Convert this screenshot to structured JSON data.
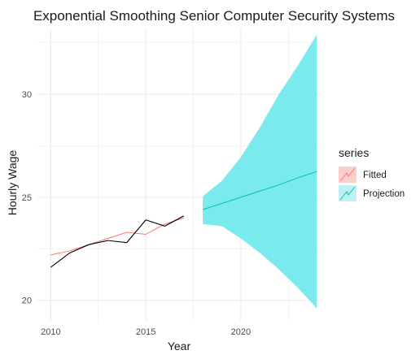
{
  "chart_data": {
    "type": "line",
    "title": "Exponential Smoothing Senior Computer Security Systems",
    "xlabel": "Year",
    "ylabel": "Hourly Wage",
    "xlim": [
      2009.3,
      2024.2
    ],
    "ylim": [
      19.0,
      33.2
    ],
    "x_ticks": [
      2010,
      2015,
      2020
    ],
    "y_ticks": [
      20,
      25,
      30
    ],
    "grid": true,
    "legend": {
      "title": "series",
      "placement": "right",
      "entries": [
        "Fitted",
        "Projection"
      ]
    },
    "colors": {
      "fitted": "#f8766d",
      "projection": "#00bfc4",
      "band": "#7aeaee",
      "band_legend": "#bff0f2",
      "fitted_legend_fill": "#f9cfcc",
      "actual": "#000000",
      "grid": "#ebebeb"
    },
    "series": [
      {
        "name": "Fitted",
        "x": [
          2010,
          2011,
          2012,
          2013,
          2014,
          2015,
          2016,
          2017
        ],
        "values": [
          22.2,
          22.4,
          22.7,
          23.0,
          23.3,
          23.2,
          23.7,
          24.0
        ]
      },
      {
        "x": [
          2010,
          2011,
          2012,
          2013,
          2014,
          2015,
          2016,
          2017
        ],
        "values": [
          21.6,
          22.3,
          22.7,
          22.9,
          22.8,
          23.9,
          23.6,
          24.1
        ]
      },
      {
        "name": "Projection",
        "x": [
          2018,
          2019,
          2020,
          2021,
          2022,
          2023,
          2024
        ],
        "values": [
          24.4,
          24.7,
          25.0,
          25.3,
          25.6,
          25.95,
          26.25
        ],
        "lower": [
          23.7,
          23.6,
          23.0,
          22.3,
          21.5,
          20.6,
          19.6
        ],
        "upper": [
          25.05,
          25.8,
          26.95,
          28.4,
          30.0,
          31.4,
          32.9
        ]
      }
    ]
  }
}
